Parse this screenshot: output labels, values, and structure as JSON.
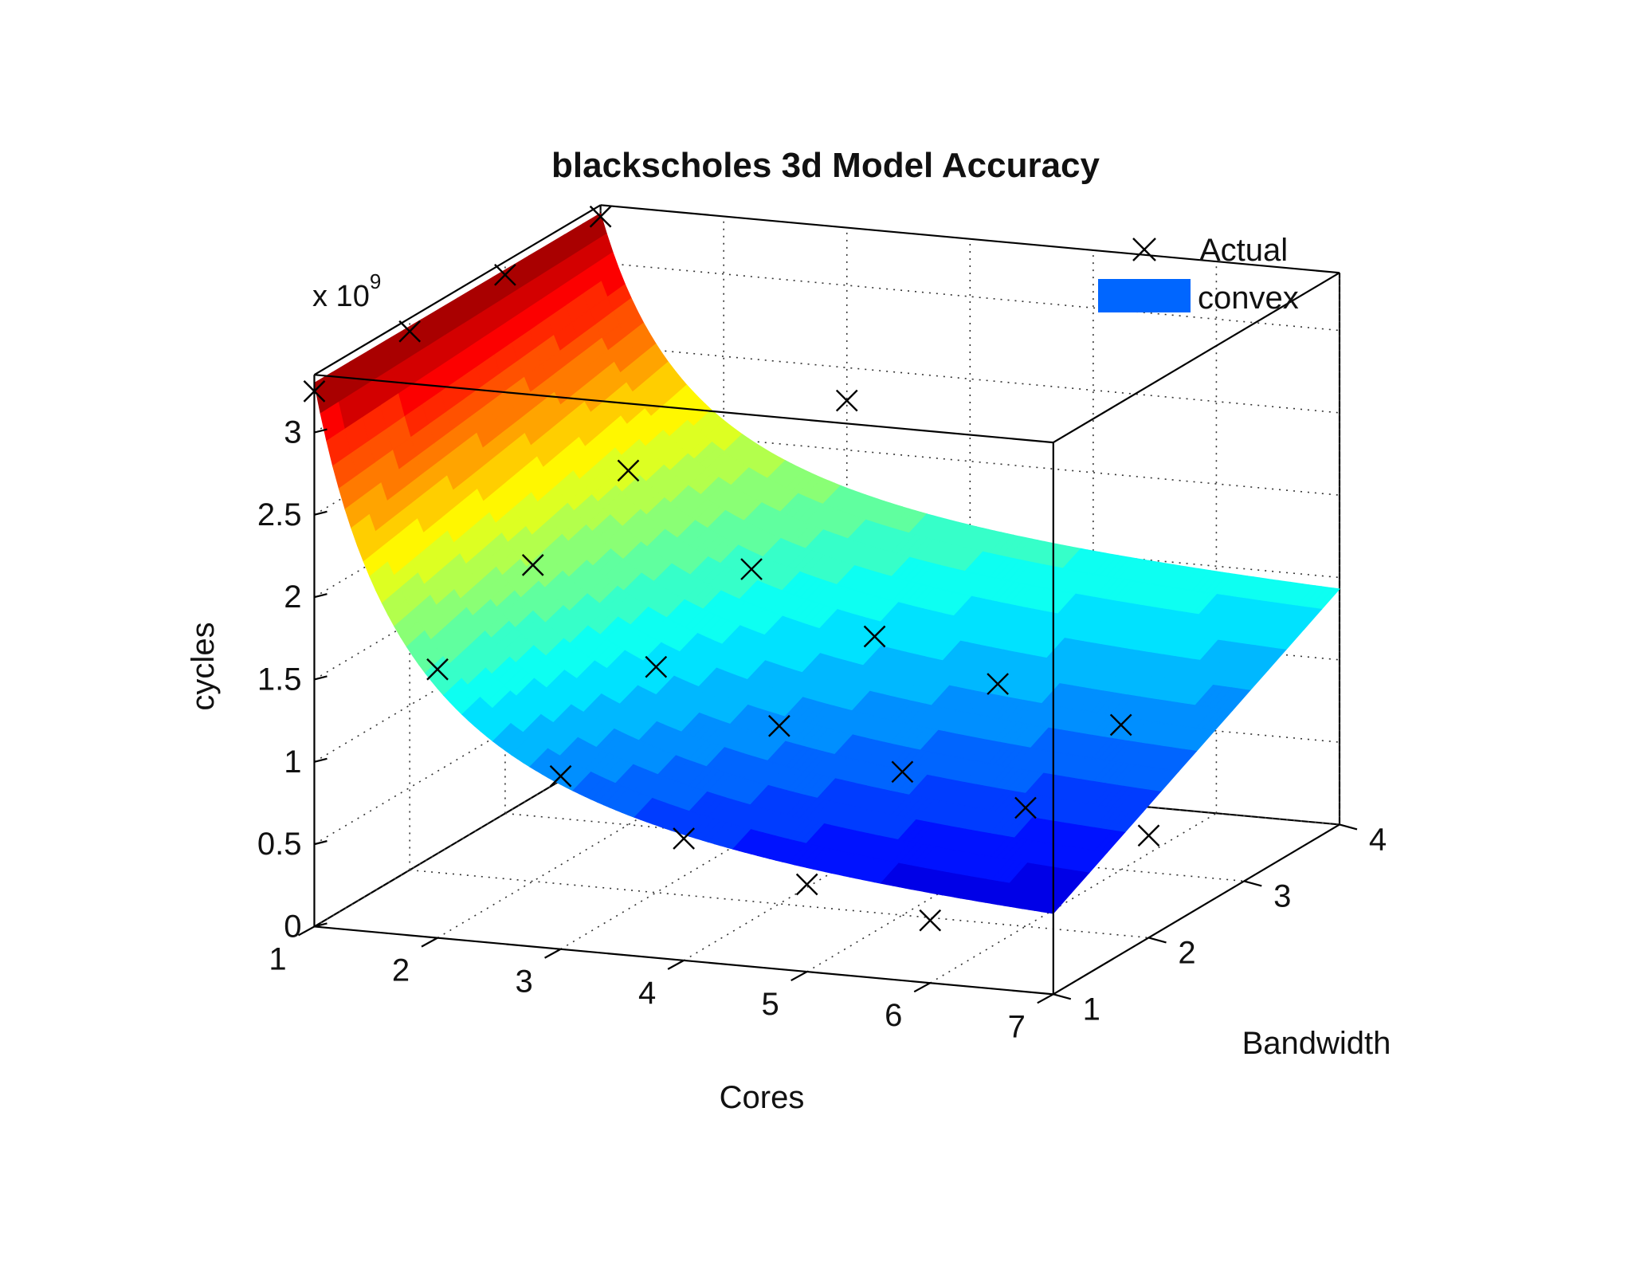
{
  "chart_data": {
    "type": "surface3d",
    "title": "blackscholes 3d Model Accuracy",
    "xlabel": "Cores",
    "ylabel": "Bandwidth",
    "zlabel": "cycles",
    "z_exponent_label": "x 10",
    "z_exponent": "9",
    "xlim": [
      1,
      7
    ],
    "ylim": [
      1,
      4
    ],
    "zlim": [
      0,
      3.35
    ],
    "x_ticks": [
      "1",
      "2",
      "3",
      "4",
      "5",
      "6",
      "7"
    ],
    "y_ticks": [
      "1",
      "2",
      "3",
      "4"
    ],
    "z_ticks": [
      "0",
      "0.5",
      "1",
      "1.5",
      "2",
      "2.5",
      "3"
    ],
    "grid": true,
    "legend_position": "top-right",
    "series": [
      {
        "name": "Actual",
        "type": "scatter",
        "marker": "x",
        "color": "#000000",
        "points": [
          [
            1,
            1,
            3.25
          ],
          [
            2,
            1,
            1.63
          ],
          [
            3,
            1,
            1.05
          ],
          [
            4,
            1,
            0.74
          ],
          [
            5,
            1,
            0.53
          ],
          [
            6,
            1,
            0.38
          ],
          [
            1,
            2,
            3.27
          ],
          [
            2,
            2,
            1.92
          ],
          [
            3,
            2,
            1.37
          ],
          [
            4,
            2,
            1.08
          ],
          [
            5,
            2,
            0.87
          ],
          [
            6,
            2,
            0.72
          ],
          [
            7,
            2,
            0.62
          ],
          [
            1,
            3,
            3.27
          ],
          [
            2,
            3,
            2.15
          ],
          [
            3,
            3,
            1.62
          ],
          [
            4,
            3,
            1.28
          ],
          [
            5,
            3,
            1.06
          ],
          [
            6,
            3,
            0.88
          ],
          [
            1,
            4,
            3.28
          ],
          [
            3,
            4,
            2.3
          ]
        ]
      },
      {
        "name": "convex",
        "type": "surface",
        "color": "#0066ff"
      }
    ]
  }
}
